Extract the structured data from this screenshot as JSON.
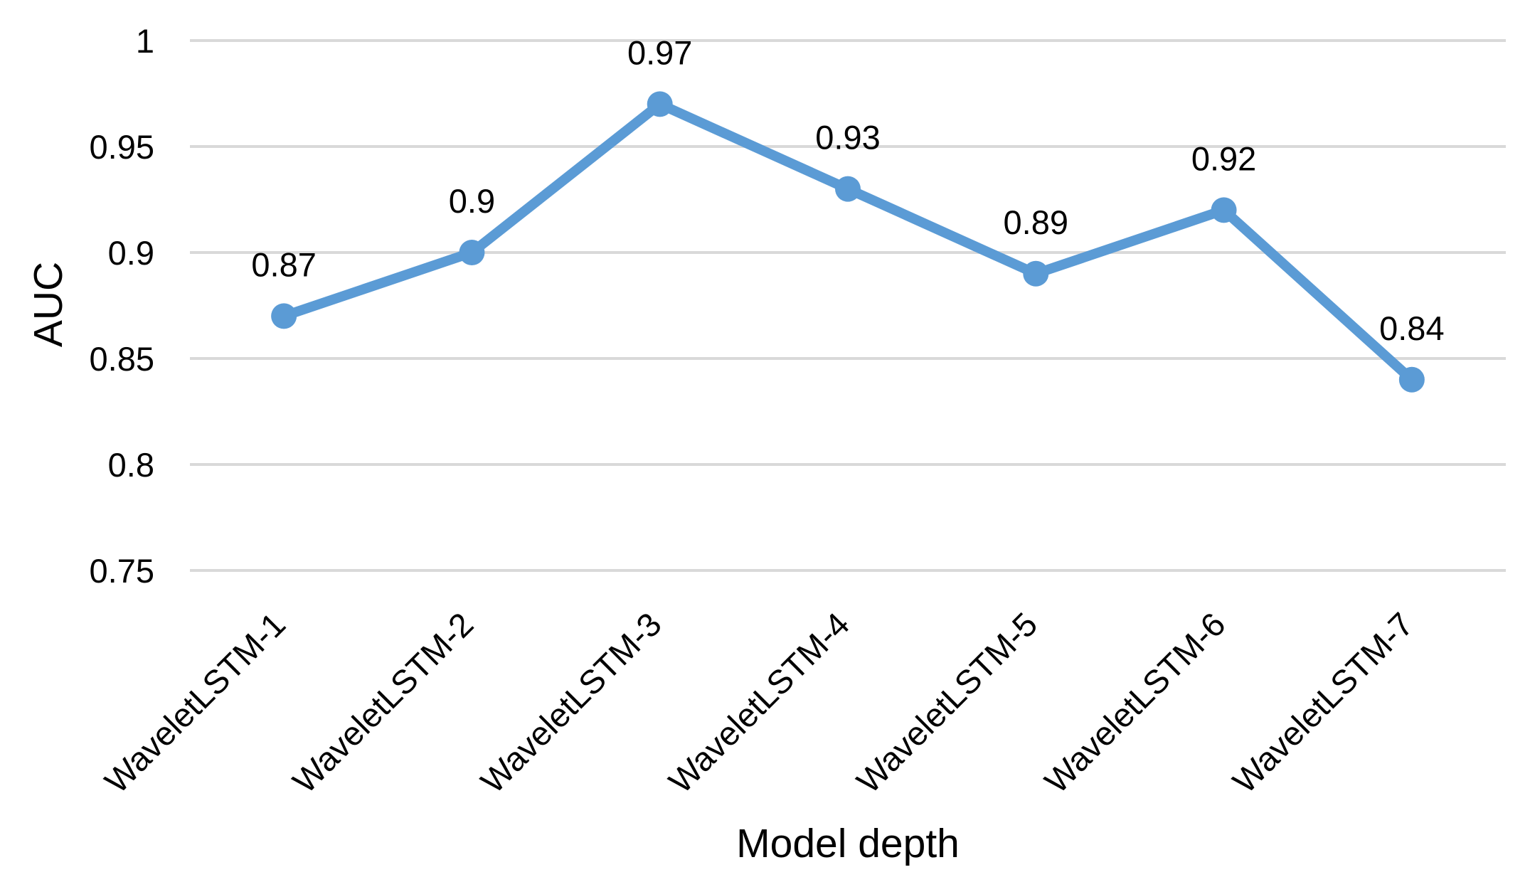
{
  "chart_data": {
    "type": "line",
    "title": "",
    "xlabel": "Model depth",
    "ylabel": "AUC",
    "categories": [
      "WaveletLSTM-1",
      "WaveletLSTM-2",
      "WaveletLSTM-3",
      "WaveletLSTM-4",
      "WaveletLSTM-5",
      "WaveletLSTM-6",
      "WaveletLSTM-7"
    ],
    "series": [
      {
        "name": "AUC",
        "values": [
          0.87,
          0.9,
          0.97,
          0.93,
          0.89,
          0.92,
          0.84
        ],
        "point_labels": [
          "0.87",
          "0.9",
          "0.97",
          "0.93",
          "0.89",
          "0.92",
          "0.84"
        ],
        "color": "#5B9BD5",
        "marker": "circle"
      }
    ],
    "ylim": [
      0.75,
      1.0
    ],
    "ytick_values": [
      1,
      0.95,
      0.9,
      0.85,
      0.8,
      0.75
    ],
    "ytick_labels": [
      "1",
      "0.95",
      "0.9",
      "0.85",
      "0.8",
      "0.75"
    ],
    "grid": "horizontal",
    "grid_color": "#D9D9D9",
    "text_color": "#000000",
    "background": "#FFFFFF",
    "legend": "none",
    "x_tick_rotation_deg": 45
  }
}
